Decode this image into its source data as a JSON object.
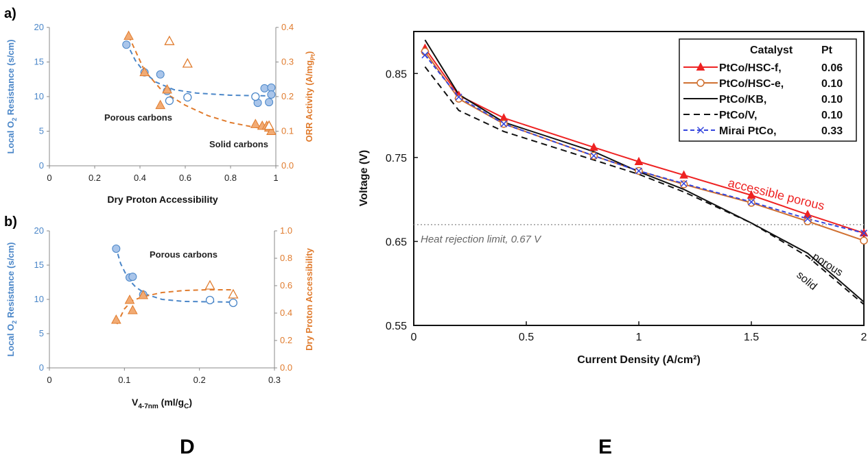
{
  "panel_labels": {
    "a": "a)",
    "b": "b)",
    "D": "D",
    "E": "E"
  },
  "colors": {
    "blue": "#4a86c8",
    "blue_fill": "#a9c5ea",
    "orange": "#e07b2d",
    "orange_fill": "#f2ab74",
    "red": "#ee2222",
    "orange_line": "#d07030",
    "black": "#111111",
    "mirai": "#3344dd",
    "grid": "#999999"
  },
  "chart_data": [
    {
      "id": "a",
      "type": "scatter",
      "xlabel": "Dry Proton Accessibility",
      "ylabel_left": "Local O2 Resistance (s/cm)",
      "ylabel_right": "ORR Activity (A/mgPt)",
      "xlim": [
        0,
        1
      ],
      "ylim_left": [
        0,
        20
      ],
      "ylim_right": [
        0,
        0.4
      ],
      "x_ticks": [
        "0",
        "0.2",
        "0.4",
        "0.6",
        "0.8",
        "1"
      ],
      "yl_ticks": [
        "0",
        "5",
        "10",
        "15",
        "20"
      ],
      "yr_ticks": [
        "0.0",
        "0.1",
        "0.2",
        "0.3",
        "0.4"
      ],
      "annotations": [
        "Porous carbons",
        "Solid carbons"
      ],
      "series": [
        {
          "axis": "left",
          "marker": "circle-filled",
          "points": [
            [
              0.34,
              17.5
            ],
            [
              0.42,
              13.5
            ],
            [
              0.49,
              13.2
            ],
            [
              0.52,
              10.8
            ],
            [
              0.92,
              9.1
            ],
            [
              0.95,
              11.2
            ],
            [
              0.97,
              9.2
            ],
            [
              0.98,
              11.3
            ],
            [
              0.98,
              10.3
            ]
          ]
        },
        {
          "axis": "left",
          "marker": "circle-open",
          "points": [
            [
              0.53,
              9.4
            ],
            [
              0.61,
              9.9
            ],
            [
              0.91,
              10.0
            ]
          ]
        },
        {
          "axis": "right",
          "marker": "triangle-filled",
          "points": [
            [
              0.35,
              0.375
            ],
            [
              0.42,
              0.27
            ],
            [
              0.49,
              0.175
            ],
            [
              0.52,
              0.22
            ],
            [
              0.91,
              0.12
            ],
            [
              0.94,
              0.115
            ],
            [
              0.96,
              0.115
            ],
            [
              0.97,
              0.11
            ],
            [
              0.98,
              0.1
            ]
          ]
        },
        {
          "axis": "right",
          "marker": "triangle-open",
          "points": [
            [
              0.53,
              0.36
            ],
            [
              0.61,
              0.295
            ],
            [
              0.97,
              0.115
            ]
          ]
        }
      ],
      "fits": [
        {
          "axis": "left",
          "points": [
            [
              0.34,
              17.8
            ],
            [
              0.38,
              15.2
            ],
            [
              0.42,
              13.5
            ],
            [
              0.47,
              12.1
            ],
            [
              0.55,
              11.0
            ],
            [
              0.65,
              10.5
            ],
            [
              0.8,
              10.2
            ],
            [
              0.98,
              10.1
            ]
          ]
        },
        {
          "axis": "right",
          "points": [
            [
              0.35,
              0.375
            ],
            [
              0.42,
              0.275
            ],
            [
              0.5,
              0.215
            ],
            [
              0.6,
              0.175
            ],
            [
              0.7,
              0.145
            ],
            [
              0.8,
              0.125
            ],
            [
              0.9,
              0.112
            ],
            [
              0.98,
              0.105
            ]
          ]
        }
      ]
    },
    {
      "id": "b",
      "type": "scatter",
      "xlabel": "V4-7nm (ml/gC)",
      "ylabel_left": "Local O2 Resistance (s/cm)",
      "ylabel_right": "Dry Proton Accessibility",
      "xlim": [
        0,
        0.3
      ],
      "ylim_left": [
        0,
        20
      ],
      "ylim_right": [
        0,
        1.0
      ],
      "x_ticks": [
        "0",
        "0.1",
        "0.2",
        "0.3"
      ],
      "yl_ticks": [
        "0",
        "5",
        "10",
        "15",
        "20"
      ],
      "yr_ticks": [
        "0.0",
        "0.2",
        "0.4",
        "0.6",
        "0.8",
        "1.0"
      ],
      "annotations": [
        "Porous carbons"
      ],
      "series": [
        {
          "axis": "left",
          "marker": "circle-filled",
          "points": [
            [
              0.089,
              17.4
            ],
            [
              0.107,
              13.2
            ],
            [
              0.111,
              13.3
            ],
            [
              0.125,
              10.7
            ]
          ]
        },
        {
          "axis": "left",
          "marker": "circle-open",
          "points": [
            [
              0.214,
              9.9
            ],
            [
              0.245,
              9.5
            ]
          ]
        },
        {
          "axis": "right",
          "marker": "triangle-filled",
          "points": [
            [
              0.089,
              0.35
            ],
            [
              0.107,
              0.495
            ],
            [
              0.111,
              0.42
            ],
            [
              0.125,
              0.53
            ]
          ]
        },
        {
          "axis": "right",
          "marker": "triangle-open",
          "points": [
            [
              0.214,
              0.6
            ],
            [
              0.245,
              0.535
            ]
          ]
        }
      ],
      "fits": [
        {
          "axis": "left",
          "points": [
            [
              0.088,
              17.8
            ],
            [
              0.095,
              15.2
            ],
            [
              0.105,
              13.0
            ],
            [
              0.115,
              11.8
            ],
            [
              0.13,
              10.7
            ],
            [
              0.15,
              10.0
            ],
            [
              0.18,
              9.7
            ],
            [
              0.245,
              9.6
            ]
          ]
        },
        {
          "axis": "right",
          "points": [
            [
              0.09,
              0.32
            ],
            [
              0.1,
              0.43
            ],
            [
              0.11,
              0.49
            ],
            [
              0.125,
              0.52
            ],
            [
              0.15,
              0.55
            ],
            [
              0.18,
              0.565
            ],
            [
              0.21,
              0.57
            ],
            [
              0.245,
              0.57
            ]
          ]
        }
      ]
    },
    {
      "id": "E",
      "type": "line",
      "xlabel": "Current Density (A/cm²)",
      "ylabel": "Voltage (V)",
      "xlim": [
        0,
        2
      ],
      "ylim": [
        0.55,
        0.9
      ],
      "x_ticks": [
        "0",
        "0.5",
        "1",
        "1.5",
        "2"
      ],
      "y_ticks": [
        "0.55",
        "0.65",
        "0.75",
        "0.85"
      ],
      "hline": {
        "y": 0.67,
        "label": "Heat rejection limit, 0.67 V"
      },
      "annotations": [
        "accessible porous",
        "porous",
        "solid"
      ],
      "legend": {
        "position": "top-right",
        "header": [
          "Catalyst",
          "Pt"
        ]
      },
      "series": [
        {
          "name": "PtCo/HSC-f,",
          "pt": "0.06",
          "color": "red",
          "style": "solid",
          "marker": "triangle-filled",
          "x": [
            0.05,
            0.2,
            0.4,
            0.8,
            1.0,
            1.2,
            1.5,
            1.75,
            2.0
          ],
          "y": [
            0.88,
            0.824,
            0.797,
            0.762,
            0.745,
            0.729,
            0.705,
            0.682,
            0.66
          ]
        },
        {
          "name": "PtCo/HSC-e,",
          "pt": "0.10",
          "color": "orange_line",
          "style": "solid",
          "marker": "circle-open",
          "x": [
            0.05,
            0.2,
            0.4,
            0.8,
            1.0,
            1.2,
            1.5,
            1.75,
            2.0
          ],
          "y": [
            0.876,
            0.82,
            0.79,
            0.752,
            0.734,
            0.718,
            0.696,
            0.674,
            0.651
          ]
        },
        {
          "name": "PtCo/KB,",
          "pt": "0.10",
          "color": "black",
          "style": "solid",
          "marker": "none",
          "x": [
            0.05,
            0.2,
            0.4,
            0.8,
            1.0,
            1.2,
            1.5,
            1.75,
            2.0
          ],
          "y": [
            0.89,
            0.825,
            0.792,
            0.757,
            0.733,
            0.712,
            0.672,
            0.636,
            0.578
          ]
        },
        {
          "name": "PtCo/V,",
          "pt": "0.10",
          "color": "black",
          "style": "dashed",
          "marker": "none",
          "x": [
            0.05,
            0.2,
            0.4,
            0.8,
            1.0,
            1.2,
            1.5,
            1.75,
            2.0
          ],
          "y": [
            0.858,
            0.806,
            0.781,
            0.747,
            0.73,
            0.709,
            0.672,
            0.632,
            0.575
          ]
        },
        {
          "name": "Mirai PtCo,",
          "pt": "0.33",
          "color": "mirai",
          "style": "dashed",
          "marker": "x",
          "x": [
            0.05,
            0.2,
            0.4,
            0.8,
            1.0,
            1.2,
            1.5,
            1.75,
            2.0
          ],
          "y": [
            0.872,
            0.822,
            0.79,
            0.752,
            0.734,
            0.719,
            0.697,
            0.677,
            0.66
          ]
        }
      ]
    }
  ]
}
